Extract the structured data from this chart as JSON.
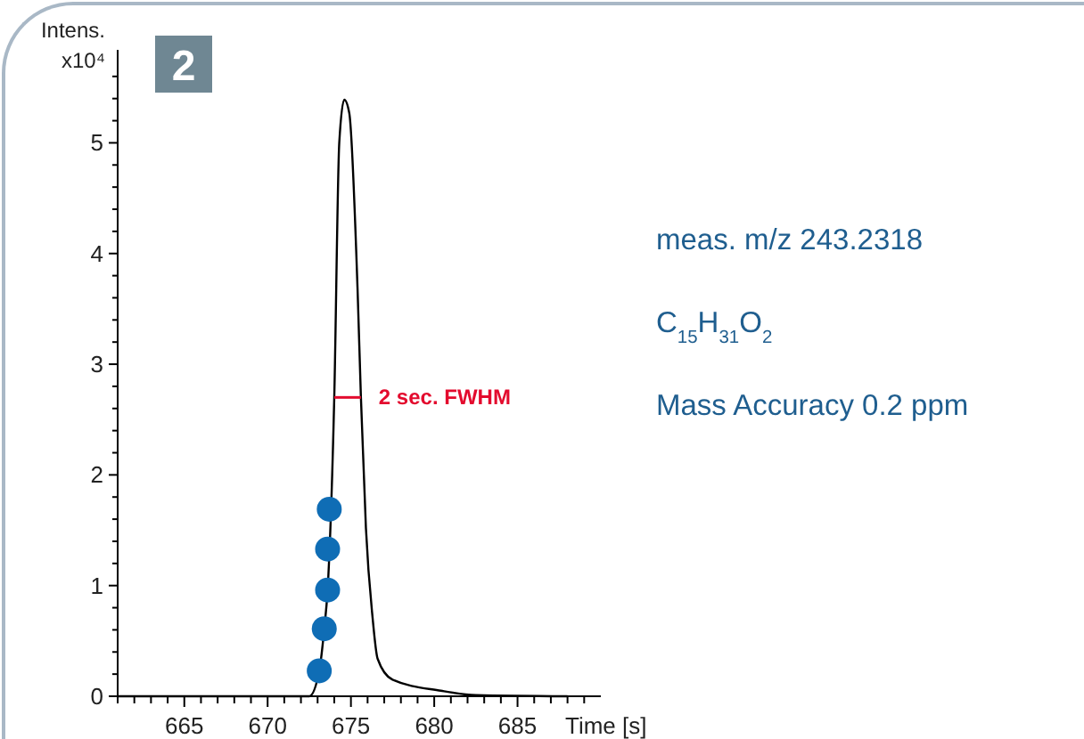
{
  "chart_data": {
    "type": "line",
    "title": "2",
    "xlabel": "Time [s]",
    "ylabel": "Intens. x10⁴",
    "xlim": [
      661,
      690
    ],
    "ylim": [
      0,
      5.84
    ],
    "xticks": [
      {
        "value": 661,
        "label": null
      },
      {
        "value": 662,
        "label": null
      },
      {
        "value": 663,
        "label": null
      },
      {
        "value": 664,
        "label": null
      },
      665,
      {
        "value": 666,
        "label": null
      },
      {
        "value": 667,
        "label": null
      },
      {
        "value": 668,
        "label": null
      },
      {
        "value": 669,
        "label": null
      },
      670,
      {
        "value": 671,
        "label": null
      },
      {
        "value": 672,
        "label": null
      },
      {
        "value": 673,
        "label": null
      },
      {
        "value": 674,
        "label": null
      },
      675,
      {
        "value": 676,
        "label": null
      },
      {
        "value": 677,
        "label": null
      },
      {
        "value": 678,
        "label": null
      },
      {
        "value": 679,
        "label": null
      },
      680,
      {
        "value": 681,
        "label": null
      },
      {
        "value": 682,
        "label": null
      },
      {
        "value": 683,
        "label": null
      },
      {
        "value": 684,
        "label": null
      },
      685,
      {
        "value": 686,
        "label": null
      },
      {
        "value": 687,
        "label": null
      },
      {
        "value": 688,
        "label": null
      },
      {
        "value": 689,
        "label": null
      }
    ],
    "yticks": [
      0,
      {
        "value": 0.2,
        "label": null
      },
      {
        "value": 0.4,
        "label": null
      },
      {
        "value": 0.6,
        "label": null
      },
      {
        "value": 0.8,
        "label": null
      },
      1,
      {
        "value": 1.2,
        "label": null
      },
      {
        "value": 1.4,
        "label": null
      },
      {
        "value": 1.6,
        "label": null
      },
      {
        "value": 1.8,
        "label": null
      },
      2,
      {
        "value": 2.2,
        "label": null
      },
      {
        "value": 2.4,
        "label": null
      },
      {
        "value": 2.6,
        "label": null
      },
      {
        "value": 2.8,
        "label": null
      },
      3,
      {
        "value": 3.2,
        "label": null
      },
      {
        "value": 3.4,
        "label": null
      },
      {
        "value": 3.6,
        "label": null
      },
      {
        "value": 3.8,
        "label": null
      },
      4,
      {
        "value": 4.2,
        "label": null
      },
      {
        "value": 4.4,
        "label": null
      },
      {
        "value": 4.6,
        "label": null
      },
      {
        "value": 4.8,
        "label": null
      },
      5,
      {
        "value": 5.2,
        "label": null
      },
      {
        "value": 5.4,
        "label": null
      },
      {
        "value": 5.6,
        "label": null
      }
    ],
    "grid": false,
    "series": [
      {
        "color": "#000000",
        "marker": "none",
        "x": [
          661,
          672.5,
          673.1,
          673.4,
          673.6,
          674.0,
          674.3,
          674.6,
          674.9,
          675.4,
          675.6,
          675.9,
          676.3,
          676.6,
          677.5,
          680.4,
          682.5,
          688
        ],
        "values": [
          0,
          0,
          0.23,
          0.61,
          0.96,
          2.7,
          5.0,
          5.39,
          5.27,
          3.67,
          2.7,
          1.52,
          0.71,
          0.34,
          0.15,
          0.05,
          0.01,
          0
        ]
      },
      {
        "color": "#e30b2e",
        "marker": "none",
        "x": [
          674.0,
          675.6
        ],
        "values": [
          2.7,
          2.7
        ]
      },
      {
        "type": "scatter",
        "color": "#0f6db5",
        "marker": "circle",
        "x": [
          673.1,
          673.4,
          673.6,
          673.6,
          673.7
        ],
        "values": [
          0.23,
          0.61,
          0.96,
          1.33,
          1.69
        ]
      }
    ],
    "annotations": [
      {
        "text": "2 sec. FWHM",
        "x": 675.6,
        "y": 2.7
      },
      "meas. m/z 243.2318",
      "C$_{15}$H$_{31}$O$_{2}$",
      "Mass Accuracy 0.2 ppm"
    ]
  }
}
